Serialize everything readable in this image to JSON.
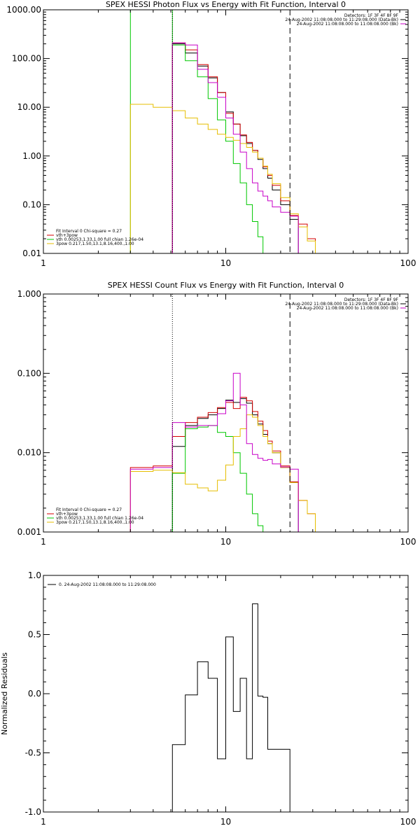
{
  "colors": {
    "black": "#000000",
    "red": "#d40000",
    "green": "#00c800",
    "magenta": "#c800c8",
    "yellow": "#e6be00",
    "background": "#ffffff"
  },
  "chart_data": [
    {
      "type": "line",
      "title": "SPEX HESSI Photon Flux vs Energy with Fit Function, Interval 0",
      "xlabel": "",
      "ylabel": "",
      "x_scale": "log",
      "y_scale": "log",
      "xlim": [
        1,
        100
      ],
      "ylim": [
        0.01,
        1000
      ],
      "x_ticks": [
        "1",
        "10",
        "100"
      ],
      "y_ticks": [
        "0.01",
        "0.10",
        "1.00",
        "10.00",
        "100.00",
        "1000.00"
      ],
      "legend_top": [
        "Detectors: 1F 3F 4F 8F 9F",
        "24-Aug-2002 11:08:08.000 to 11:29:08.000 (Data-Bk)",
        "24-Aug-2002 11:08:08.000 to 11:08:08.000 (Bk)"
      ],
      "legend_bottom": [
        "Fit Interval 0   Chi-square = 0.27",
        "vth+3pow",
        "vth 0.00253,1.33,1.00  full chian 1.26e-04",
        "3pow 0.217,1.50,13.1,8.16,400.,1.00"
      ],
      "vlines": [
        {
          "x": 5.1,
          "style": "dotted"
        },
        {
          "x": 22.5,
          "style": "dashed"
        }
      ],
      "edges": [
        3,
        4,
        5.1,
        6,
        7,
        8,
        9,
        10,
        11,
        12,
        13,
        14,
        15,
        16,
        17,
        18,
        20,
        22.5,
        25,
        28,
        31
      ],
      "series": [
        {
          "name": "Data-Bk",
          "color": "black",
          "values": [
            null,
            null,
            200,
            130,
            70,
            40,
            20,
            8,
            4.5,
            2.6,
            1.8,
            1.3,
            0.85,
            0.55,
            0.35,
            0.2,
            0.1,
            0.05,
            null,
            null
          ]
        },
        {
          "name": "vth+3pow",
          "color": "red",
          "values": [
            null,
            null,
            210,
            150,
            75,
            42,
            20,
            7.5,
            4.5,
            2.7,
            1.9,
            1.3,
            0.9,
            0.6,
            0.4,
            0.25,
            0.12,
            0.06,
            0.04,
            0.02
          ]
        },
        {
          "name": "vth",
          "color": "green",
          "values": [
            1000,
            1000,
            190,
            90,
            42,
            15,
            5.5,
            2,
            0.7,
            0.28,
            0.1,
            0.045,
            0.022,
            null,
            null,
            null,
            null,
            null,
            null,
            null
          ]
        },
        {
          "name": "3pow",
          "color": "yellow",
          "values": [
            11.5,
            10,
            8.5,
            6,
            4.5,
            3.5,
            2.8,
            2.4,
            2.1,
            1.8,
            1.5,
            1.2,
            0.9,
            0.62,
            0.42,
            0.27,
            0.14,
            0.065,
            0.035,
            0.018
          ]
        },
        {
          "name": "Bk",
          "color": "magenta",
          "values": [
            null,
            null,
            210,
            190,
            60,
            32,
            16,
            6,
            2.8,
            1.2,
            0.55,
            0.28,
            0.19,
            0.15,
            0.12,
            0.09,
            0.07,
            0.058,
            null,
            null
          ]
        }
      ]
    },
    {
      "type": "line",
      "title": "SPEX HESSI Count Flux vs Energy with Fit Function, Interval 0",
      "xlabel": "",
      "ylabel": "",
      "x_scale": "log",
      "y_scale": "log",
      "xlim": [
        1,
        100
      ],
      "ylim": [
        0.001,
        1
      ],
      "x_ticks": [
        "1",
        "10",
        "100"
      ],
      "y_ticks": [
        "0.001",
        "0.010",
        "0.100",
        "1.000"
      ],
      "legend_top": [
        "Detectors: 1F 3F 4F 8F 9F",
        "24-Aug-2002 11:08:08.000 to 11:29:08.000 (Data-Bk)",
        "24-Aug-2002 11:08:08.000 to 11:08:08.000 (Bk)"
      ],
      "legend_bottom": [
        "Fit Interval 0   Chi-square = 0.27",
        "vth+3pow",
        "vth 0.00253,1.33,1.00  full chian 1.26e-04",
        "3pow 0.217,1.50,13.1,8.16,400.,1.00"
      ],
      "vlines": [
        {
          "x": 5.1,
          "style": "dotted"
        },
        {
          "x": 22.5,
          "style": "dashed"
        }
      ],
      "edges": [
        3,
        4,
        5.1,
        6,
        7,
        8,
        9,
        10,
        11,
        12,
        13,
        14,
        15,
        16,
        17,
        18,
        20,
        22.5,
        25,
        28,
        31
      ],
      "series": [
        {
          "name": "Data-Bk",
          "color": "black",
          "values": [
            null,
            null,
            0.012,
            0.022,
            0.027,
            0.03,
            0.036,
            0.046,
            0.043,
            0.048,
            0.042,
            0.03,
            0.023,
            0.017,
            0.013,
            0.01,
            0.0065,
            0.0042,
            null,
            null
          ]
        },
        {
          "name": "vth+3pow",
          "color": "red",
          "values": [
            0.0065,
            0.0068,
            0.016,
            0.024,
            0.028,
            0.032,
            0.037,
            0.043,
            0.036,
            0.05,
            0.045,
            0.033,
            0.025,
            0.019,
            0.014,
            0.0105,
            0.0068,
            0.0043,
            0.0025,
            0.0017
          ]
        },
        {
          "name": "vth",
          "color": "green",
          "values": [
            null,
            null,
            0.0055,
            0.02,
            0.021,
            0.022,
            0.018,
            0.016,
            0.01,
            0.0055,
            0.003,
            0.0017,
            0.0012,
            null,
            null,
            null,
            null,
            null,
            null,
            null
          ]
        },
        {
          "name": "3pow",
          "color": "yellow",
          "values": [
            0.0058,
            0.006,
            0.0056,
            0.004,
            0.0036,
            0.0033,
            0.0045,
            0.007,
            0.016,
            0.02,
            0.03,
            0.028,
            0.022,
            0.016,
            0.013,
            0.01,
            0.0065,
            0.0042,
            0.0025,
            0.0017
          ]
        },
        {
          "name": "Bk",
          "color": "magenta",
          "values": [
            0.0062,
            0.0065,
            0.024,
            0.021,
            0.022,
            0.022,
            0.031,
            0.045,
            0.1,
            0.04,
            0.013,
            0.0095,
            0.0085,
            0.008,
            0.0082,
            0.0072,
            0.0066,
            0.0062,
            null,
            null
          ]
        }
      ]
    },
    {
      "type": "line",
      "title": "",
      "xlabel": "",
      "ylabel": "Normalized Residuals",
      "x_scale": "log",
      "y_scale": "linear",
      "xlim": [
        1,
        100
      ],
      "ylim": [
        -1,
        1
      ],
      "x_ticks": [
        "1",
        "10",
        "100"
      ],
      "y_ticks": [
        "-1.0",
        "-0.5",
        "0.0",
        "0.5",
        "1.0"
      ],
      "legend_top": [],
      "legend": [
        "0. 24-Aug-2002 11:08:08.000 to 11:29:08.000"
      ],
      "vlines": [],
      "edges": [
        5.1,
        6,
        7,
        8,
        9,
        10,
        11,
        12,
        13,
        14,
        15,
        16,
        17,
        18,
        20,
        22.5
      ],
      "series": [
        {
          "name": "",
          "color": "black",
          "values": [
            -0.43,
            -0.01,
            0.27,
            0.13,
            -0.55,
            0.48,
            -0.15,
            0.13,
            -0.55,
            0.76,
            -0.02,
            -0.03,
            -0.47,
            -0.47,
            -0.47
          ]
        }
      ]
    }
  ]
}
